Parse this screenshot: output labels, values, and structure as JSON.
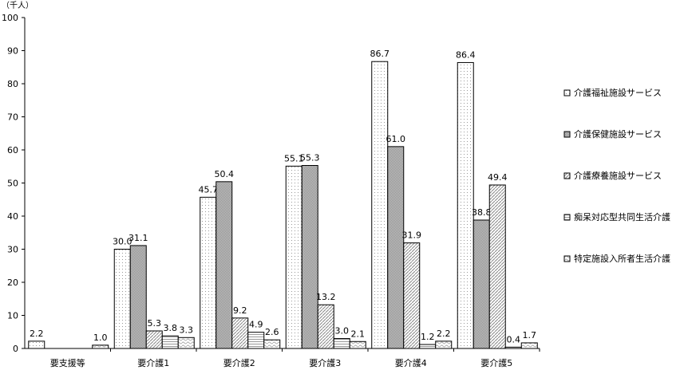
{
  "chart_data": {
    "type": "bar",
    "unit_label": "（千人）",
    "categories": [
      "要支援等",
      "要介護1",
      "要介護2",
      "要介護3",
      "要介護4",
      "要介護5"
    ],
    "series": [
      {
        "name": "介護福祉施設サービス",
        "values": [
          2.2,
          30.0,
          45.7,
          55.1,
          86.7,
          86.4
        ],
        "pattern": "dots"
      },
      {
        "name": "介護保健施設サービス",
        "values": [
          null,
          31.1,
          50.4,
          55.3,
          61.0,
          38.8
        ],
        "pattern": "crosshatch"
      },
      {
        "name": "介護療養施設サービス",
        "values": [
          null,
          5.3,
          9.2,
          13.2,
          31.9,
          49.4
        ],
        "pattern": "diagonal"
      },
      {
        "name": "痴呆対応型共同生活介護",
        "values": [
          null,
          3.8,
          4.9,
          3.0,
          1.2,
          0.4
        ],
        "pattern": "horizontal"
      },
      {
        "name": "特定施設入所者生活介護",
        "values": [
          1.0,
          3.3,
          2.6,
          2.1,
          2.2,
          1.7
        ],
        "pattern": "wave"
      }
    ],
    "ylim": [
      0,
      100
    ],
    "yticks": [
      0,
      10,
      20,
      30,
      40,
      50,
      60,
      70,
      80,
      90,
      100
    ],
    "grid": false,
    "legend": "right"
  }
}
